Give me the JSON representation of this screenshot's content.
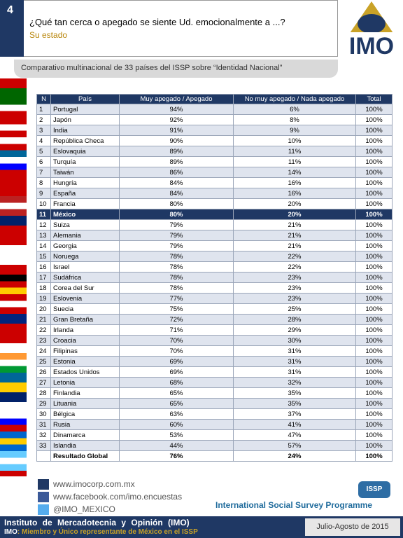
{
  "header": {
    "number": "4",
    "question": "¿Qué tan cerca o apegado se siente Ud. emocionalmente a ...?",
    "subtitle": "Su estado",
    "logo": "IMO"
  },
  "banner": "Comparativo multinacional de 33 países del ISSP sobre “Identidad Nacional”",
  "table": {
    "columns": [
      "N",
      "País",
      "Muy apegado / Apegado",
      "No muy apegado / Nada apegado",
      "Total"
    ],
    "highlight": "11",
    "rows": [
      [
        "1",
        "Portugal",
        "94%",
        "6%",
        "100%"
      ],
      [
        "2",
        "Japón",
        "92%",
        "8%",
        "100%"
      ],
      [
        "3",
        "India",
        "91%",
        "9%",
        "100%"
      ],
      [
        "4",
        "República Checa",
        "90%",
        "10%",
        "100%"
      ],
      [
        "5",
        "Eslovaquia",
        "89%",
        "11%",
        "100%"
      ],
      [
        "6",
        "Turquía",
        "89%",
        "11%",
        "100%"
      ],
      [
        "7",
        "Taiwán",
        "86%",
        "14%",
        "100%"
      ],
      [
        "8",
        "Hungría",
        "84%",
        "16%",
        "100%"
      ],
      [
        "9",
        "España",
        "84%",
        "16%",
        "100%"
      ],
      [
        "10",
        "Francia",
        "80%",
        "20%",
        "100%"
      ],
      [
        "11",
        "México",
        "80%",
        "20%",
        "100%"
      ],
      [
        "12",
        "Suiza",
        "79%",
        "21%",
        "100%"
      ],
      [
        "13",
        "Alemania",
        "79%",
        "21%",
        "100%"
      ],
      [
        "14",
        "Georgia",
        "79%",
        "21%",
        "100%"
      ],
      [
        "15",
        "Noruega",
        "78%",
        "22%",
        "100%"
      ],
      [
        "16",
        "Israel",
        "78%",
        "22%",
        "100%"
      ],
      [
        "17",
        "Sudáfrica",
        "78%",
        "23%",
        "100%"
      ],
      [
        "18",
        "Corea del Sur",
        "78%",
        "23%",
        "100%"
      ],
      [
        "19",
        "Eslovenia",
        "77%",
        "23%",
        "100%"
      ],
      [
        "20",
        "Suecia",
        "75%",
        "25%",
        "100%"
      ],
      [
        "21",
        "Gran Bretaña",
        "72%",
        "28%",
        "100%"
      ],
      [
        "22",
        "Irlanda",
        "71%",
        "29%",
        "100%"
      ],
      [
        "23",
        "Croacia",
        "70%",
        "30%",
        "100%"
      ],
      [
        "24",
        "Filipinas",
        "70%",
        "31%",
        "100%"
      ],
      [
        "25",
        "Estonia",
        "69%",
        "31%",
        "100%"
      ],
      [
        "26",
        "Estados Unidos",
        "69%",
        "31%",
        "100%"
      ],
      [
        "27",
        "Letonia",
        "68%",
        "32%",
        "100%"
      ],
      [
        "28",
        "Finlandia",
        "65%",
        "35%",
        "100%"
      ],
      [
        "29",
        "Lituania",
        "65%",
        "35%",
        "100%"
      ],
      [
        "30",
        "Bélgica",
        "63%",
        "37%",
        "100%"
      ],
      [
        "31",
        "Rusia",
        "60%",
        "41%",
        "100%"
      ],
      [
        "32",
        "Dinamarca",
        "53%",
        "47%",
        "100%"
      ],
      [
        "33",
        "Islandia",
        "44%",
        "57%",
        "100%"
      ]
    ],
    "total": [
      "Resultado Global",
      "76%",
      "24%",
      "100%"
    ]
  },
  "footer": {
    "links": [
      "www.imocorp.com.mx",
      "www.facebook.com/imo.encuestas",
      "@IMO_MEXICO"
    ],
    "issp": "ISSP",
    "programme": "International Social Survey Programme",
    "org": "Instituto de Mercadotecnia y Opinión (IMO)",
    "tagline_bold": "IMO",
    "tagline": ": Miembro y Único representante de México en el ISSP",
    "date": "Julio-Agosto de 2015"
  }
}
